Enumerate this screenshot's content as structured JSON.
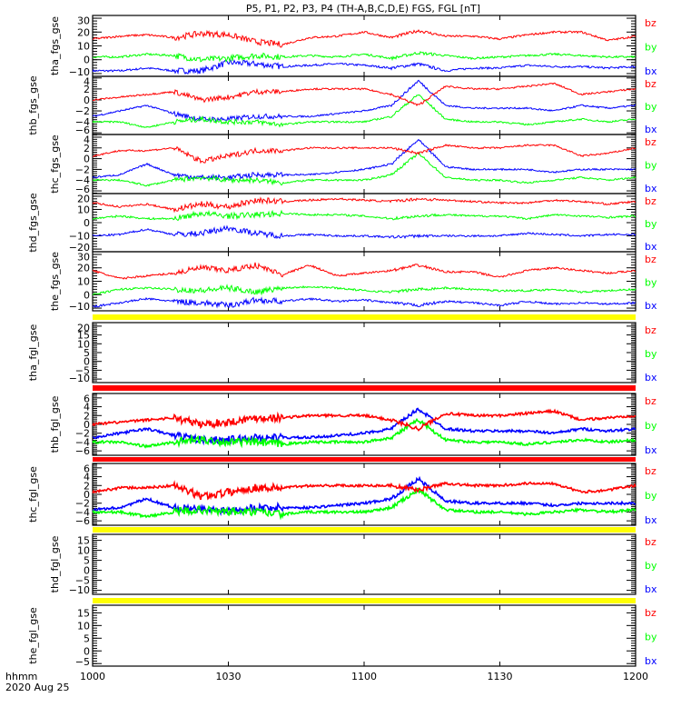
{
  "chart_data": {
    "type": "line",
    "title": "P5, P1, P2, P3, P4 (TH-A,B,C,D,E) FGS, FGL [nT]",
    "x_unit_label": "hhmm",
    "date_label": "2020 Aug 25",
    "x_ticks": [
      {
        "t": 0,
        "label": "1000"
      },
      {
        "t": 30,
        "label": "1030"
      },
      {
        "t": 60,
        "label": "1100"
      },
      {
        "t": 90,
        "label": "1130"
      },
      {
        "t": 120,
        "label": "1200"
      }
    ],
    "x_range_minutes": [
      0,
      120
    ],
    "x_sample_minutes": [
      0,
      6,
      12,
      18,
      24,
      30,
      36,
      42,
      48,
      54,
      60,
      66,
      72,
      78,
      84,
      90,
      96,
      102,
      108,
      114,
      120
    ],
    "series_labels": [
      "bz",
      "by",
      "bx"
    ],
    "series_colors": {
      "bz": "#ff0000",
      "by": "#00ff00",
      "bx": "#0000ff"
    },
    "separator_colors": {
      "yellow": "#ffff00",
      "red": "#ff0000"
    },
    "panels": [
      {
        "ylabel": "tha_fgs_gse",
        "ylim": [
          -12,
          32
        ],
        "yticks": [
          30,
          20,
          10,
          0,
          -10
        ],
        "noise": 0.4,
        "bz": [
          15,
          17,
          18,
          16,
          19,
          18,
          13,
          11,
          16,
          17,
          20,
          16,
          21,
          17,
          17,
          15,
          18,
          20,
          20,
          14,
          17
        ],
        "by": [
          2,
          2,
          4,
          3,
          0,
          1,
          3,
          2,
          3,
          2,
          4,
          1,
          5,
          3,
          1,
          2,
          3,
          4,
          3,
          2,
          2
        ],
        "bx": [
          -8,
          -8,
          -6,
          -8,
          -8,
          -2,
          -3,
          -5,
          -4,
          -3,
          -4,
          -6,
          -3,
          -8,
          -6,
          -6,
          -4,
          -5,
          -5,
          -6,
          -5
        ]
      },
      {
        "ylabel": "thb_fgs_gse",
        "ylim": [
          -6.3,
          4.3
        ],
        "yticks": [
          4,
          2,
          0,
          -2,
          -4,
          -6
        ],
        "noise": 0.35,
        "bz": [
          0,
          0.5,
          1,
          1.5,
          0,
          0.5,
          1.5,
          1.5,
          2,
          2,
          2,
          1,
          -1,
          2.5,
          2,
          2,
          2.5,
          3,
          1,
          1.5,
          2
        ],
        "by": [
          -4,
          -4,
          -5,
          -4,
          -3.5,
          -4,
          -4,
          -4.5,
          -4,
          -4,
          -4,
          -3,
          1,
          -3.5,
          -4,
          -4,
          -4.5,
          -4,
          -3.5,
          -4,
          -3.5
        ],
        "bx": [
          -3,
          -2,
          -1,
          -2.5,
          -3.5,
          -3.5,
          -3,
          -3,
          -3,
          -2.5,
          -2,
          -1,
          3.5,
          -1,
          -1.5,
          -1.5,
          -1.5,
          -2,
          -1,
          -1.5,
          -1
        ]
      },
      {
        "ylabel": "thc_fgs_gse",
        "ylim": [
          -6.5,
          4.5
        ],
        "yticks": [
          4,
          2,
          0,
          -2,
          -4,
          -6
        ],
        "noise": 0.35,
        "bz": [
          0.5,
          1.5,
          1.5,
          2,
          -0.5,
          0.5,
          1.5,
          1.5,
          2,
          2,
          2,
          2,
          1,
          2.5,
          2,
          2,
          2.5,
          2.5,
          0.5,
          1,
          2
        ],
        "by": [
          -4,
          -4,
          -5,
          -4,
          -3.5,
          -4,
          -4,
          -4.5,
          -4,
          -4,
          -4,
          -3,
          1,
          -3.5,
          -4,
          -4,
          -4.5,
          -4,
          -3.5,
          -4,
          -3.5
        ],
        "bx": [
          -3.5,
          -3,
          -1,
          -3,
          -3.5,
          -3.5,
          -3,
          -3,
          -3,
          -2.5,
          -2,
          -1,
          3.5,
          -1.5,
          -2,
          -2,
          -2,
          -2.5,
          -2,
          -2,
          -2
        ]
      },
      {
        "ylabel": "thd_fgs_gse",
        "ylim": [
          -22,
          22
        ],
        "yticks": [
          20,
          10,
          0,
          -10,
          -20
        ],
        "noise": 0.4,
        "bz": [
          15,
          12,
          14,
          10,
          14,
          12,
          17,
          16,
          17,
          18,
          17,
          16,
          18,
          17,
          16,
          15,
          15,
          17,
          16,
          14,
          16
        ],
        "by": [
          3,
          5,
          3,
          3,
          7,
          5,
          6,
          7,
          6,
          6,
          5,
          3,
          5,
          6,
          5,
          5,
          3,
          6,
          5,
          4,
          5
        ],
        "bx": [
          -10,
          -9,
          -5,
          -9,
          -8,
          -4,
          -8,
          -10,
          -9,
          -10,
          -10,
          -11,
          -10,
          -10,
          -10,
          -10,
          -8,
          -9,
          -10,
          -9,
          -9
        ]
      },
      {
        "ylabel": "the_fgs_gse",
        "ylim": [
          -12,
          32
        ],
        "yticks": [
          30,
          20,
          10,
          0,
          -10
        ],
        "noise": 0.4,
        "bz": [
          18,
          12,
          14,
          16,
          20,
          18,
          22,
          15,
          22,
          14,
          16,
          18,
          22,
          17,
          17,
          13,
          18,
          20,
          18,
          16,
          18
        ],
        "by": [
          0,
          4,
          5,
          4,
          3,
          5,
          2,
          5,
          6,
          5,
          3,
          2,
          4,
          5,
          4,
          3,
          3,
          4,
          2,
          3,
          4
        ],
        "bx": [
          -9,
          -6,
          -3,
          -5,
          -6,
          -8,
          -4,
          -5,
          -3,
          -5,
          -4,
          -6,
          -8,
          -5,
          -6,
          -8,
          -5,
          -7,
          -6,
          -7,
          -6
        ],
        "bar_after": "yellow"
      },
      {
        "ylabel": "tha_fgl_gse",
        "ylim": [
          -12,
          22
        ],
        "yticks": [
          20,
          15,
          10,
          5,
          0,
          -5,
          -10
        ],
        "empty": true,
        "bar_after": "red"
      },
      {
        "ylabel": "thb_fgl_gse",
        "ylim": [
          -7,
          7
        ],
        "yticks": [
          6,
          4,
          2,
          0,
          -2,
          -4,
          -6
        ],
        "noise": 0.5,
        "bz": [
          0,
          0.5,
          1,
          1.5,
          0,
          0.5,
          1.5,
          1.5,
          2,
          2,
          2,
          1,
          -1,
          2.5,
          2,
          2,
          2.5,
          3,
          1,
          1.5,
          2
        ],
        "by": [
          -4,
          -4,
          -5,
          -4,
          -3.5,
          -4,
          -4,
          -4.5,
          -4,
          -4,
          -4,
          -3,
          1,
          -3.5,
          -4,
          -4,
          -4.5,
          -4,
          -3.5,
          -4,
          -3.5
        ],
        "bx": [
          -3,
          -2,
          -1,
          -2.5,
          -3.5,
          -3.5,
          -3,
          -3,
          -3,
          -2.5,
          -2,
          -1,
          3.5,
          -1,
          -1.5,
          -1.5,
          -1.5,
          -2,
          -1,
          -1.5,
          -1
        ],
        "bar_after": "red"
      },
      {
        "ylabel": "thc_fgl_gse",
        "ylim": [
          -7,
          7
        ],
        "yticks": [
          6,
          4,
          2,
          0,
          -2,
          -4,
          -6
        ],
        "noise": 0.5,
        "bz": [
          0.5,
          1.5,
          1.5,
          2,
          -0.5,
          0.5,
          1.5,
          1.5,
          2,
          2,
          2,
          2,
          1,
          2.5,
          2,
          2,
          2.5,
          2.5,
          0.5,
          1,
          2
        ],
        "by": [
          -4,
          -4,
          -5,
          -4,
          -3.5,
          -4,
          -4,
          -4.5,
          -4,
          -4,
          -4,
          -3,
          1,
          -3.5,
          -4,
          -4,
          -4.5,
          -4,
          -3.5,
          -4,
          -3.5
        ],
        "bx": [
          -3.5,
          -3,
          -1,
          -3,
          -3.5,
          -3.5,
          -3,
          -3,
          -3,
          -2.5,
          -2,
          -1,
          3.5,
          -1.5,
          -2,
          -2,
          -2,
          -2.5,
          -2,
          -2,
          -2
        ],
        "bar_after": "yellow"
      },
      {
        "ylabel": "thd_fgl_gse",
        "ylim": [
          -12,
          18
        ],
        "yticks": [
          15,
          10,
          5,
          0,
          -5,
          -10
        ],
        "empty": true,
        "bar_after": "yellow"
      },
      {
        "ylabel": "the_fgl_gse",
        "ylim": [
          -6,
          18
        ],
        "yticks": [
          15,
          10,
          5,
          0,
          -5
        ],
        "empty": true
      }
    ]
  }
}
